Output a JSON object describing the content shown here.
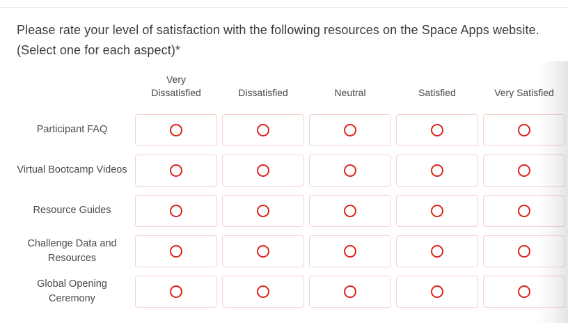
{
  "question": {
    "text": "Please rate your level of satisfaction with the following resources on the Space Apps website. (Select one for each aspect)*"
  },
  "matrix": {
    "column_headers": [
      "Very\nDissatisfied",
      "Dissatisfied",
      "Neutral",
      "Satisfied",
      "Very Satisfied"
    ],
    "rows": [
      {
        "label": "Participant FAQ",
        "selected": null
      },
      {
        "label": "Virtual Bootcamp Videos",
        "selected": null
      },
      {
        "label": "Resource Guides",
        "selected": null
      },
      {
        "label": "Challenge Data and Resources",
        "selected": null
      },
      {
        "label": "Global Opening Ceremony",
        "selected": null
      }
    ]
  },
  "colors": {
    "radio_accent": "#db241c",
    "cell_border": "#f5d2cb",
    "question_text": "#3c3c3c",
    "label_text": "#4a4a4a",
    "divider": "#e6e6e6"
  }
}
